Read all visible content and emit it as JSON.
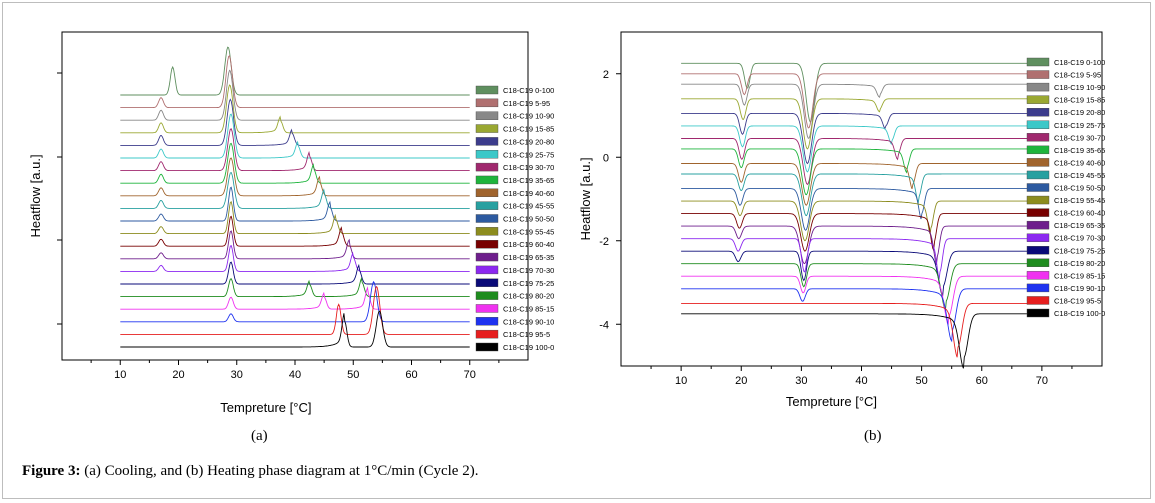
{
  "figure": {
    "caption_label": "Figure 3:",
    "caption_text": " (a) Cooling, and (b) Heating phase diagram at 1°C/min (Cycle 2).",
    "panel_a_label": "(a)",
    "panel_b_label": "(b)"
  },
  "chart_data": [
    {
      "id": "a",
      "type": "line",
      "title": "",
      "xlabel": "Tempreture [°C]",
      "ylabel": "Heatflow [a.u.]",
      "xlim": [
        0,
        80
      ],
      "xticks": [
        10,
        20,
        30,
        40,
        50,
        60,
        70
      ],
      "yticks_labeled": false,
      "grid": false,
      "legend_position": "right",
      "peak_direction": "up",
      "series": [
        {
          "name": "C18-C19 0-100",
          "color": "#5f8f5f",
          "peaks": [
            {
              "x": 19,
              "h": 28
            },
            {
              "x": 28.5,
              "h": 48
            }
          ]
        },
        {
          "name": "C18-C19 5-95",
          "color": "#b07070",
          "peaks": [
            {
              "x": 17,
              "h": 10
            },
            {
              "x": 28.7,
              "h": 52
            }
          ]
        },
        {
          "name": "C18-C19 10-90",
          "color": "#888888",
          "peaks": [
            {
              "x": 17,
              "h": 10
            },
            {
              "x": 28.8,
              "h": 50
            }
          ]
        },
        {
          "name": "C18-C19 15-85",
          "color": "#9aa832",
          "peaks": [
            {
              "x": 17,
              "h": 10
            },
            {
              "x": 28.8,
              "h": 48
            },
            {
              "x": 37.5,
              "h": 12
            }
          ]
        },
        {
          "name": "C18-C19 20-80",
          "color": "#3c3c8c",
          "peaks": [
            {
              "x": 17,
              "h": 10
            },
            {
              "x": 28.9,
              "h": 46
            },
            {
              "x": 39.5,
              "h": 12
            }
          ]
        },
        {
          "name": "C18-C19 25-75",
          "color": "#3cc8c8",
          "peaks": [
            {
              "x": 17,
              "h": 9
            },
            {
              "x": 29,
              "h": 44
            },
            {
              "x": 40.5,
              "h": 12
            }
          ]
        },
        {
          "name": "C18-C19 30-70",
          "color": "#a0286e",
          "peaks": [
            {
              "x": 17,
              "h": 9
            },
            {
              "x": 29,
              "h": 42
            },
            {
              "x": 42.5,
              "h": 14
            }
          ]
        },
        {
          "name": "C18-C19 35-65",
          "color": "#1eb43c",
          "peaks": [
            {
              "x": 17,
              "h": 9
            },
            {
              "x": 29,
              "h": 40
            },
            {
              "x": 43.2,
              "h": 14
            }
          ]
        },
        {
          "name": "C18-C19 40-60",
          "color": "#a0642d",
          "peaks": [
            {
              "x": 17,
              "h": 8
            },
            {
              "x": 29,
              "h": 38
            },
            {
              "x": 44.2,
              "h": 14
            }
          ]
        },
        {
          "name": "C18-C19 45-55",
          "color": "#28a0a0",
          "peaks": [
            {
              "x": 17,
              "h": 8
            },
            {
              "x": 29,
              "h": 36
            },
            {
              "x": 45,
              "h": 14
            }
          ]
        },
        {
          "name": "C18-C19 50-50",
          "color": "#2d5aa0",
          "peaks": [
            {
              "x": 17,
              "h": 7
            },
            {
              "x": 29,
              "h": 34
            },
            {
              "x": 46,
              "h": 14
            }
          ]
        },
        {
          "name": "C18-C19 55-45",
          "color": "#8c8c1e",
          "peaks": [
            {
              "x": 17,
              "h": 7
            },
            {
              "x": 29,
              "h": 32
            },
            {
              "x": 47,
              "h": 14
            }
          ]
        },
        {
          "name": "C18-C19 60-40",
          "color": "#780000",
          "peaks": [
            {
              "x": 17,
              "h": 7
            },
            {
              "x": 29,
              "h": 30
            },
            {
              "x": 48,
              "h": 14
            }
          ]
        },
        {
          "name": "C18-C19 65-35",
          "color": "#6e1e8c",
          "peaks": [
            {
              "x": 17,
              "h": 6
            },
            {
              "x": 29,
              "h": 28
            },
            {
              "x": 49.3,
              "h": 14
            }
          ]
        },
        {
          "name": "C18-C19 70-30",
          "color": "#8c28f0",
          "peaks": [
            {
              "x": 17,
              "h": 6
            },
            {
              "x": 29,
              "h": 26
            },
            {
              "x": 50,
              "h": 14
            }
          ]
        },
        {
          "name": "C18-C19 75-25",
          "color": "#0a0a78",
          "peaks": [
            {
              "x": 29,
              "h": 22
            },
            {
              "x": 51,
              "h": 14
            }
          ]
        },
        {
          "name": "C18-C19 80-20",
          "color": "#1e8c1e",
          "peaks": [
            {
              "x": 29,
              "h": 18
            },
            {
              "x": 42.5,
              "h": 12
            },
            {
              "x": 51.5,
              "h": 14
            }
          ]
        },
        {
          "name": "C18-C19 85-15",
          "color": "#f032f0",
          "peaks": [
            {
              "x": 29,
              "h": 12
            },
            {
              "x": 45,
              "h": 12
            },
            {
              "x": 52.5,
              "h": 16
            }
          ]
        },
        {
          "name": "C18-C19 90-10",
          "color": "#1e32f0",
          "peaks": [
            {
              "x": 29,
              "h": 8
            },
            {
              "x": 53.5,
              "h": 40
            }
          ]
        },
        {
          "name": "C18-C19 95-5",
          "color": "#e61e1e",
          "peaks": [
            {
              "x": 47.5,
              "h": 30
            },
            {
              "x": 54,
              "h": 48
            }
          ]
        },
        {
          "name": "C18-C19 100-0",
          "color": "#000000",
          "peaks": [
            {
              "x": 48.5,
              "h": 26
            },
            {
              "x": 54.5,
              "h": 36
            }
          ]
        }
      ]
    },
    {
      "id": "b",
      "type": "line",
      "title": "",
      "xlabel": "Tempreture [°C]",
      "ylabel": "Heatflow [a.u.]",
      "xlim": [
        0,
        80
      ],
      "ylim": [
        -5,
        3
      ],
      "xticks": [
        10,
        20,
        30,
        40,
        50,
        60,
        70
      ],
      "yticks": [
        -4,
        -2,
        0,
        2
      ],
      "grid": false,
      "legend_position": "right",
      "peak_direction": "down",
      "series": [
        {
          "name": "C18-C19 0-100",
          "color": "#5f8f5f",
          "baseline": 2.25,
          "dips": [
            {
              "x": 21,
              "d": 0.6
            },
            {
              "x": 31.5,
              "d": 1.4
            }
          ]
        },
        {
          "name": "C18-C19 5-95",
          "color": "#b07070",
          "baseline": 2.0,
          "dips": [
            {
              "x": 20.5,
              "d": 0.5
            },
            {
              "x": 31.2,
              "d": 1.3
            }
          ]
        },
        {
          "name": "C18-C19 10-90",
          "color": "#888888",
          "baseline": 1.75,
          "dips": [
            {
              "x": 20.5,
              "d": 0.5
            },
            {
              "x": 31.2,
              "d": 1.3
            },
            {
              "x": 43,
              "d": 0.25
            }
          ]
        },
        {
          "name": "C18-C19 15-85",
          "color": "#9aa832",
          "baseline": 1.4,
          "dips": [
            {
              "x": 20.3,
              "d": 0.5
            },
            {
              "x": 31,
              "d": 1.2
            },
            {
              "x": 43,
              "d": 0.25
            }
          ]
        },
        {
          "name": "C18-C19 20-80",
          "color": "#3c3c8c",
          "baseline": 1.05,
          "dips": [
            {
              "x": 20.2,
              "d": 0.5
            },
            {
              "x": 31,
              "d": 1.2
            },
            {
              "x": 44,
              "d": 0.3
            }
          ]
        },
        {
          "name": "C18-C19 25-75",
          "color": "#3cc8c8",
          "baseline": 0.75,
          "dips": [
            {
              "x": 20.2,
              "d": 0.5
            },
            {
              "x": 31,
              "d": 1.1
            },
            {
              "x": 45,
              "d": 0.35
            }
          ]
        },
        {
          "name": "C18-C19 30-70",
          "color": "#a0286e",
          "baseline": 0.45,
          "dips": [
            {
              "x": 20.1,
              "d": 0.5
            },
            {
              "x": 31,
              "d": 1.1
            },
            {
              "x": 46,
              "d": 0.4
            }
          ]
        },
        {
          "name": "C18-C19 35-65",
          "color": "#1eb43c",
          "baseline": 0.2,
          "dips": [
            {
              "x": 20,
              "d": 0.45
            },
            {
              "x": 30.8,
              "d": 1.1
            },
            {
              "x": 47.5,
              "d": 0.45
            }
          ]
        },
        {
          "name": "C18-C19 40-60",
          "color": "#a0642d",
          "baseline": -0.15,
          "dips": [
            {
              "x": 20,
              "d": 0.45
            },
            {
              "x": 30.8,
              "d": 1.0
            },
            {
              "x": 48.5,
              "d": 0.5
            }
          ]
        },
        {
          "name": "C18-C19 45-55",
          "color": "#28a0a0",
          "baseline": -0.4,
          "dips": [
            {
              "x": 20,
              "d": 0.4
            },
            {
              "x": 30.8,
              "d": 1.0
            },
            {
              "x": 49.5,
              "d": 0.55
            }
          ]
        },
        {
          "name": "C18-C19 50-50",
          "color": "#2d5aa0",
          "baseline": -0.75,
          "dips": [
            {
              "x": 19.8,
              "d": 0.4
            },
            {
              "x": 30.7,
              "d": 1.0
            },
            {
              "x": 50,
              "d": 0.6
            }
          ]
        },
        {
          "name": "C18-C19 55-45",
          "color": "#8c8c1e",
          "baseline": -1.05,
          "dips": [
            {
              "x": 19.8,
              "d": 0.35
            },
            {
              "x": 30.6,
              "d": 0.95
            },
            {
              "x": 51.5,
              "d": 0.65
            }
          ]
        },
        {
          "name": "C18-C19 60-40",
          "color": "#780000",
          "baseline": -1.35,
          "dips": [
            {
              "x": 19.7,
              "d": 0.35
            },
            {
              "x": 30.6,
              "d": 0.9
            },
            {
              "x": 52,
              "d": 0.7
            }
          ]
        },
        {
          "name": "C18-C19 65-35",
          "color": "#6e1e8c",
          "baseline": -1.65,
          "dips": [
            {
              "x": 19.6,
              "d": 0.3
            },
            {
              "x": 30.5,
              "d": 0.9
            },
            {
              "x": 52.5,
              "d": 0.75
            }
          ]
        },
        {
          "name": "C18-C19 70-30",
          "color": "#8c28f0",
          "baseline": -1.95,
          "dips": [
            {
              "x": 19.5,
              "d": 0.3
            },
            {
              "x": 30.5,
              "d": 0.8
            },
            {
              "x": 53,
              "d": 0.8
            }
          ]
        },
        {
          "name": "C18-C19 75-25",
          "color": "#0a0a78",
          "baseline": -2.25,
          "dips": [
            {
              "x": 19.5,
              "d": 0.25
            },
            {
              "x": 30.4,
              "d": 0.7
            },
            {
              "x": 53.5,
              "d": 0.85
            }
          ]
        },
        {
          "name": "C18-C19 80-20",
          "color": "#1e8c1e",
          "baseline": -2.55,
          "dips": [
            {
              "x": 30.4,
              "d": 0.55
            },
            {
              "x": 54,
              "d": 0.9
            }
          ]
        },
        {
          "name": "C18-C19 85-15",
          "color": "#f032f0",
          "baseline": -2.85,
          "dips": [
            {
              "x": 30.3,
              "d": 0.4
            },
            {
              "x": 54.5,
              "d": 0.95
            }
          ]
        },
        {
          "name": "C18-C19 90-10",
          "color": "#1e32f0",
          "baseline": -3.15,
          "dips": [
            {
              "x": 30.2,
              "d": 0.3
            },
            {
              "x": 55,
              "d": 1.0
            }
          ]
        },
        {
          "name": "C18-C19 95-5",
          "color": "#e61e1e",
          "baseline": -3.5,
          "dips": [
            {
              "x": 56,
              "d": 1.05
            }
          ]
        },
        {
          "name": "C18-C19 100-0",
          "color": "#000000",
          "baseline": -3.75,
          "dips": [
            {
              "x": 57,
              "d": 1.05
            }
          ]
        }
      ]
    }
  ]
}
